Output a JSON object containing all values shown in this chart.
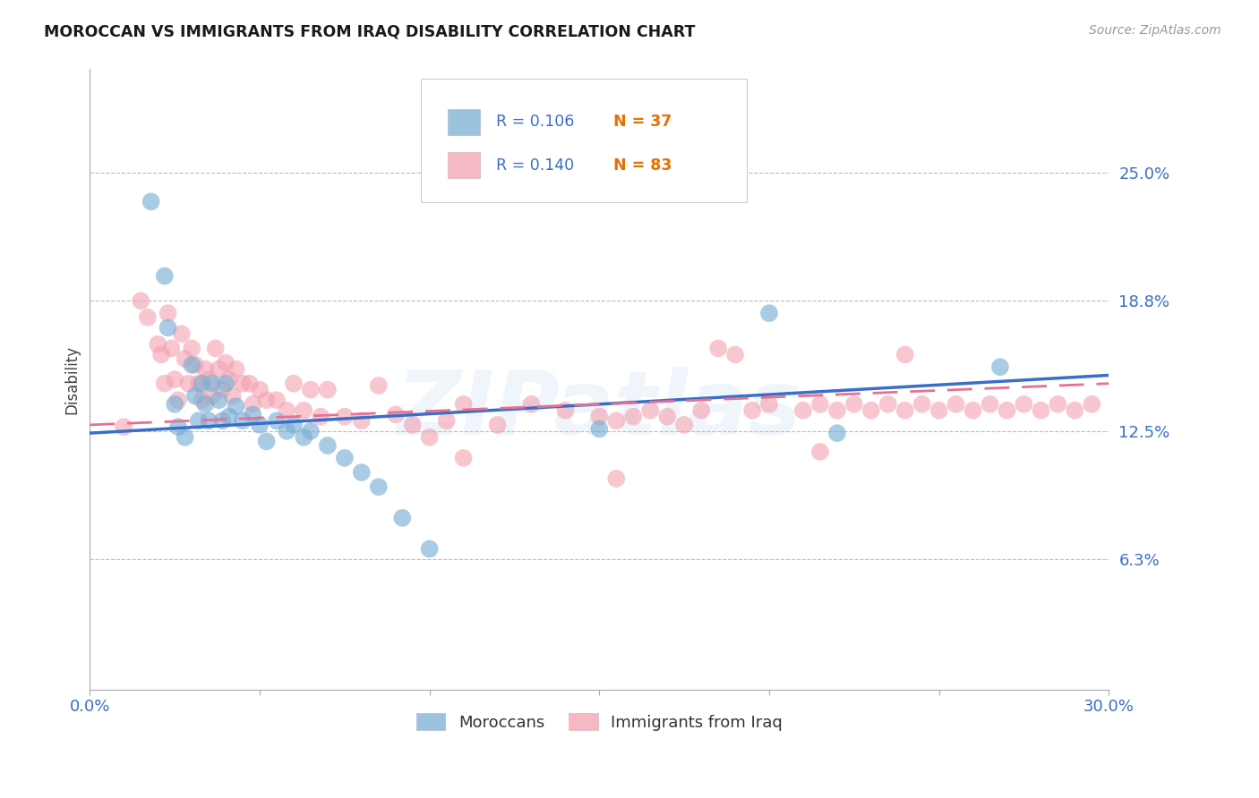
{
  "title": "MOROCCAN VS IMMIGRANTS FROM IRAQ DISABILITY CORRELATION CHART",
  "source": "Source: ZipAtlas.com",
  "ylabel": "Disability",
  "ytick_labels": [
    "25.0%",
    "18.8%",
    "12.5%",
    "6.3%"
  ],
  "ytick_values": [
    0.25,
    0.188,
    0.125,
    0.063
  ],
  "xmin": 0.0,
  "xmax": 0.3,
  "ymin": 0.0,
  "ymax": 0.3,
  "legend_moroccan_R": "R = 0.106",
  "legend_moroccan_N": "N = 37",
  "legend_iraq_R": "R = 0.140",
  "legend_iraq_N": "N = 83",
  "moroccan_color": "#7BAFD4",
  "iraq_color": "#F4A0B0",
  "moroccan_line_color": "#3A6EC8",
  "iraq_line_color": "#E87090",
  "legend_R_color": "#3A6EC8",
  "legend_N_color": "#E87000",
  "watermark": "ZIPatlas",
  "moroccans_label": "Moroccans",
  "iraq_label": "Immigrants from Iraq",
  "moroccan_x": [
    0.018,
    0.022,
    0.023,
    0.025,
    0.026,
    0.028,
    0.03,
    0.031,
    0.032,
    0.033,
    0.034,
    0.035,
    0.036,
    0.038,
    0.039,
    0.04,
    0.041,
    0.043,
    0.045,
    0.048,
    0.05,
    0.052,
    0.055,
    0.058,
    0.06,
    0.063,
    0.065,
    0.07,
    0.075,
    0.08,
    0.085,
    0.092,
    0.1,
    0.15,
    0.2,
    0.22,
    0.268
  ],
  "moroccan_y": [
    0.236,
    0.2,
    0.175,
    0.138,
    0.127,
    0.122,
    0.157,
    0.142,
    0.13,
    0.148,
    0.138,
    0.13,
    0.148,
    0.14,
    0.13,
    0.148,
    0.132,
    0.137,
    0.13,
    0.133,
    0.128,
    0.12,
    0.13,
    0.125,
    0.128,
    0.122,
    0.125,
    0.118,
    0.112,
    0.105,
    0.098,
    0.083,
    0.068,
    0.126,
    0.182,
    0.124,
    0.156
  ],
  "iraq_x": [
    0.01,
    0.015,
    0.017,
    0.02,
    0.021,
    0.022,
    0.023,
    0.024,
    0.025,
    0.026,
    0.027,
    0.028,
    0.029,
    0.03,
    0.031,
    0.032,
    0.033,
    0.034,
    0.035,
    0.036,
    0.037,
    0.038,
    0.039,
    0.04,
    0.041,
    0.042,
    0.043,
    0.045,
    0.047,
    0.048,
    0.05,
    0.052,
    0.055,
    0.058,
    0.06,
    0.063,
    0.065,
    0.068,
    0.07,
    0.075,
    0.08,
    0.085,
    0.09,
    0.095,
    0.1,
    0.105,
    0.11,
    0.12,
    0.13,
    0.14,
    0.15,
    0.155,
    0.16,
    0.165,
    0.17,
    0.175,
    0.18,
    0.19,
    0.195,
    0.2,
    0.21,
    0.215,
    0.22,
    0.225,
    0.23,
    0.235,
    0.24,
    0.245,
    0.25,
    0.255,
    0.26,
    0.265,
    0.27,
    0.275,
    0.28,
    0.285,
    0.29,
    0.295,
    0.11,
    0.155,
    0.185,
    0.215,
    0.24
  ],
  "iraq_y": [
    0.127,
    0.188,
    0.18,
    0.167,
    0.162,
    0.148,
    0.182,
    0.165,
    0.15,
    0.14,
    0.172,
    0.16,
    0.148,
    0.165,
    0.157,
    0.148,
    0.14,
    0.155,
    0.15,
    0.142,
    0.165,
    0.155,
    0.145,
    0.158,
    0.15,
    0.142,
    0.155,
    0.148,
    0.148,
    0.138,
    0.145,
    0.14,
    0.14,
    0.135,
    0.148,
    0.135,
    0.145,
    0.132,
    0.145,
    0.132,
    0.13,
    0.147,
    0.133,
    0.128,
    0.122,
    0.13,
    0.138,
    0.128,
    0.138,
    0.135,
    0.132,
    0.13,
    0.132,
    0.135,
    0.132,
    0.128,
    0.135,
    0.162,
    0.135,
    0.138,
    0.135,
    0.138,
    0.135,
    0.138,
    0.135,
    0.138,
    0.135,
    0.138,
    0.135,
    0.138,
    0.135,
    0.138,
    0.135,
    0.138,
    0.135,
    0.138,
    0.135,
    0.138,
    0.112,
    0.102,
    0.165,
    0.115,
    0.162
  ]
}
